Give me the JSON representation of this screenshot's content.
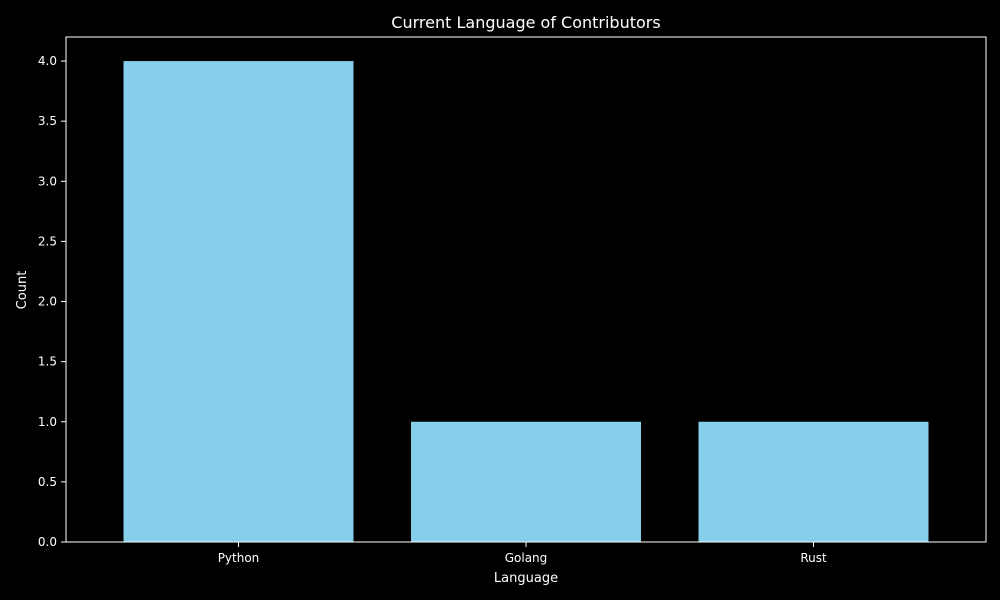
{
  "chart_data": {
    "type": "bar",
    "title": "Current Language of Contributors",
    "xlabel": "Language",
    "ylabel": "Count",
    "categories": [
      "Python",
      "Golang",
      "Rust"
    ],
    "values": [
      4,
      1,
      1
    ],
    "ylim": [
      0,
      4.2
    ],
    "yticks": [
      "0.0",
      "0.5",
      "1.0",
      "1.5",
      "2.0",
      "2.5",
      "3.0",
      "3.5",
      "4.0"
    ],
    "grid": false,
    "colors": {
      "background": "#000000",
      "bar": "#87ceeb",
      "axes": "#ffffff",
      "text": "#ffffff"
    }
  }
}
